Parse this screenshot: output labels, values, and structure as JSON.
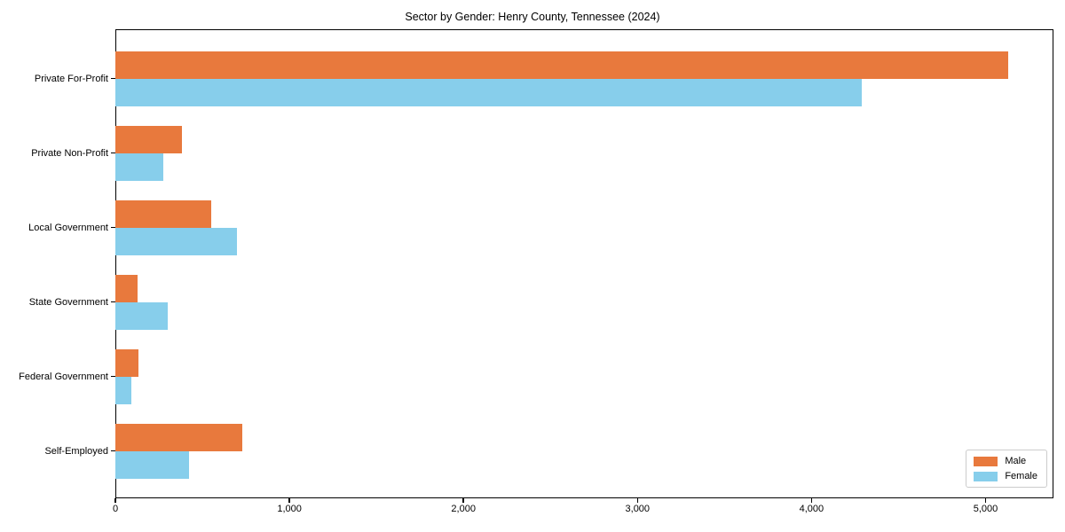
{
  "title": "Sector by Gender: Henry County, Tennessee (2024)",
  "chart_data": {
    "type": "bar",
    "orientation": "horizontal",
    "title": "Sector by Gender: Henry County, Tennessee (2024)",
    "categories": [
      "Private For-Profit",
      "Private Non-Profit",
      "Local Government",
      "State Government",
      "Federal Government",
      "Self-Employed"
    ],
    "series": [
      {
        "name": "Male",
        "color": "#e8793d",
        "values": [
          5130,
          385,
          550,
          125,
          135,
          730
        ]
      },
      {
        "name": "Female",
        "color": "#87ceeb",
        "values": [
          4290,
          275,
          700,
          300,
          90,
          425
        ]
      }
    ],
    "xlabel": "",
    "ylabel": "",
    "xlim": [
      0,
      5380
    ],
    "xticks": [
      0,
      1000,
      2000,
      3000,
      4000,
      5000
    ],
    "xtick_labels": [
      "0",
      "1,000",
      "2,000",
      "3,000",
      "4,000",
      "5,000"
    ],
    "grid": false,
    "legend_position": "lower right"
  },
  "legend": {
    "items": [
      {
        "label": "Male",
        "color": "#e8793d"
      },
      {
        "label": "Female",
        "color": "#87ceeb"
      }
    ]
  }
}
